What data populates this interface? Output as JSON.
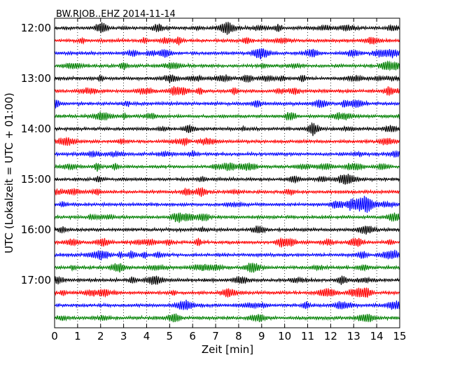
{
  "chart_data": {
    "type": "line",
    "title": "BW.RJOB..EHZ 2014-11-14",
    "xlabel": "Zeit  [min]",
    "ylabel": "UTC (Lokalzeit = UTC + 01:00)",
    "xlim": [
      0,
      15
    ],
    "x_ticks": [
      "0",
      "1",
      "2",
      "3",
      "4",
      "5",
      "6",
      "7",
      "8",
      "9",
      "10",
      "11",
      "12",
      "13",
      "14",
      "15"
    ],
    "y_tick_labels": [
      "12:00",
      "13:00",
      "14:00",
      "15:00",
      "16:00",
      "17:00"
    ],
    "grid": "vertical dotted at each minute",
    "trace_colors": [
      "#000000",
      "#ff0000",
      "#0000ff",
      "#008000"
    ],
    "trace_count": 24,
    "start_time": "12:00",
    "trace_minutes": 15
  }
}
